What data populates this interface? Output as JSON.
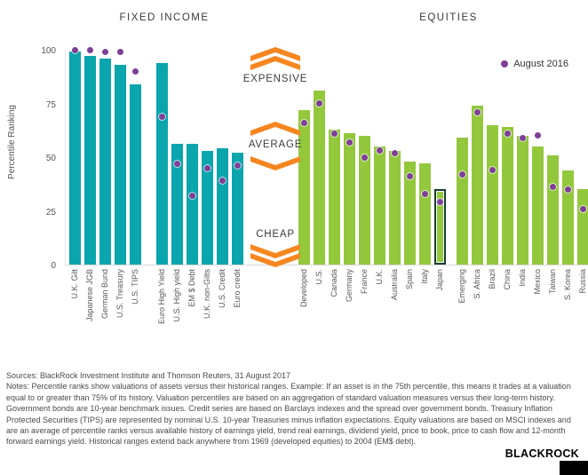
{
  "sections": {
    "fixed_income": "FIXED INCOME",
    "equities": "EQUITIES"
  },
  "legend": {
    "label": "August 2016"
  },
  "zones": {
    "expensive": "EXPENSIVE",
    "average": "AVERAGE",
    "cheap": "CHEAP"
  },
  "chart_data": {
    "type": "bar",
    "title": "",
    "xlabel": "",
    "ylabel": "Percentile Ranking",
    "ylim": [
      0,
      100
    ],
    "yticks": [
      0,
      25,
      50,
      75,
      100
    ],
    "grid": false,
    "legend_position": "top-right",
    "dot_series": "August 2016",
    "colors": {
      "fixed_income_bar": "#0aa5ad",
      "equities_bar": "#93c83d",
      "dot": "#7e3f97",
      "chevron": "#f6861f",
      "highlight_outline": "#143d2b"
    },
    "groups": [
      {
        "id": "government-bonds",
        "section": "FIXED INCOME",
        "color_key": "fixed_income_bar",
        "gap_before": 0,
        "items": [
          {
            "label": "U.K. Gilt",
            "bar": 99,
            "dot": 100
          },
          {
            "label": "Japanese JGB",
            "bar": 97,
            "dot": 100
          },
          {
            "label": "German Bund",
            "bar": 96,
            "dot": 99
          },
          {
            "label": "U.S. Treasury",
            "bar": 93,
            "dot": 99
          },
          {
            "label": "U.S. TIPS",
            "bar": 84,
            "dot": 90
          }
        ]
      },
      {
        "id": "credit",
        "section": "FIXED INCOME",
        "color_key": "fixed_income_bar",
        "gap_before": 17,
        "items": [
          {
            "label": "Euro High Yield",
            "bar": 94,
            "dot": 69
          },
          {
            "label": "U.S. High yield",
            "bar": 56,
            "dot": 47
          },
          {
            "label": "EM $ Debt",
            "bar": 56,
            "dot": 32
          },
          {
            "label": "U.K. non-Gilts",
            "bar": 53,
            "dot": 45
          },
          {
            "label": "U.S. Credit",
            "bar": 54,
            "dot": 39
          },
          {
            "label": "Euro credit",
            "bar": 52,
            "dot": 46
          }
        ]
      },
      {
        "id": "developed-equities",
        "section": "EQUITIES",
        "color_key": "equities_bar",
        "gap_before": 62,
        "items": [
          {
            "label": "Developed",
            "bar": 72,
            "dot": 66
          },
          {
            "label": "U.S.",
            "bar": 81,
            "dot": 75
          },
          {
            "label": "Canada",
            "bar": 63,
            "dot": 61
          },
          {
            "label": "Germany",
            "bar": 61,
            "dot": 57
          },
          {
            "label": "France",
            "bar": 60,
            "dot": 50
          },
          {
            "label": "U.K.",
            "bar": 55,
            "dot": 53
          },
          {
            "label": "Australia",
            "bar": 53,
            "dot": 52
          },
          {
            "label": "Spain",
            "bar": 48,
            "dot": 41
          },
          {
            "label": "Italy",
            "bar": 47,
            "dot": 33
          },
          {
            "label": "Japan",
            "bar": 35,
            "dot": 29,
            "highlight": true
          }
        ]
      },
      {
        "id": "emerging-equities",
        "section": "EQUITIES",
        "color_key": "equities_bar",
        "gap_before": 12,
        "items": [
          {
            "label": "Emerging",
            "bar": 59,
            "dot": 42
          },
          {
            "label": "S. Africa",
            "bar": 74,
            "dot": 71
          },
          {
            "label": "Brazil",
            "bar": 65,
            "dot": 44
          },
          {
            "label": "China",
            "bar": 64,
            "dot": 61
          },
          {
            "label": "India",
            "bar": 60,
            "dot": 59
          },
          {
            "label": "Mexico",
            "bar": 55,
            "dot": 60
          },
          {
            "label": "Taiwan",
            "bar": 51,
            "dot": 36
          },
          {
            "label": "S. Korea",
            "bar": 44,
            "dot": 35
          },
          {
            "label": "Russia",
            "bar": 35,
            "dot": 26
          }
        ]
      }
    ]
  },
  "footnotes": {
    "sources": "Sources: BlackRock Investment Institute and Thomson Reuters, 31 August 2017",
    "notes": "Notes: Percentile ranks show valuations of assets versus their historical ranges. Example: If an asset is in the 75th percentile, this means it trades at a valuation equal to or greater than 75% of its history. Valuation percentiles are based on an aggregation of standard valuation measures versus their long-term history. Government bonds are 10-year benchmark issues. Credit series are based on Barclays indexes and the spread over government bonds. Treasury Inflation Protected Securities (TIPS) are represented by nominal U.S. 10-year Treasuries minus inflation expectations. Equity valuations are based on MSCI indexes and are an average of percentile ranks versus available history of earnings yield, trend real earnings, dividend yield, price to book, price to cash flow and 12-month forward earnings yield. Historical ranges extend back anywhere from 1969 (developed equities) to 2004 (EM$ debt)."
  },
  "logo": {
    "brand": "BLACKROCK"
  }
}
